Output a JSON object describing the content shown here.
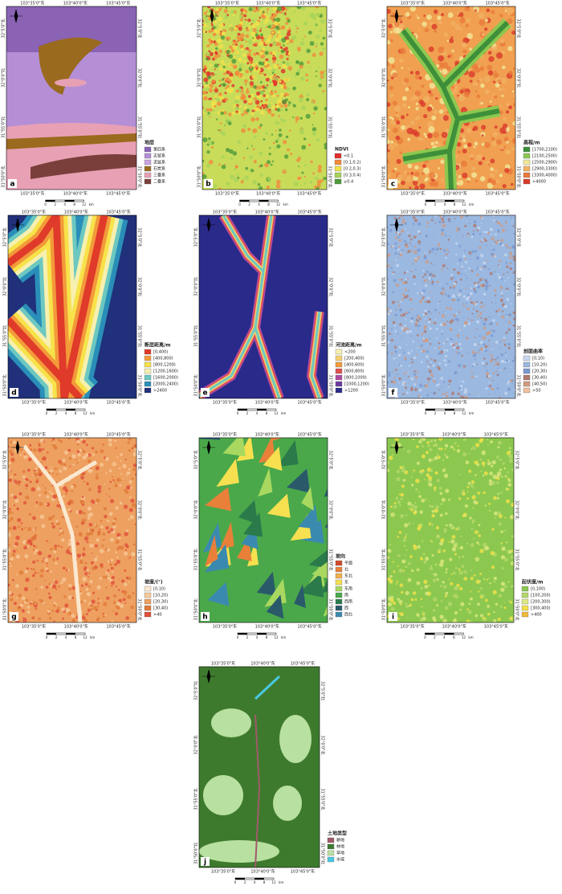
{
  "coords": {
    "lon": [
      "103°35'0\"东",
      "103°40'0\"东",
      "103°45'0\"东"
    ],
    "lat": [
      "32°5'0\"北",
      "32°0'0\"北",
      "31°55'0\"北",
      "31°50'0\"北"
    ],
    "scale": [
      "0",
      "2",
      "4",
      "8",
      "12"
    ],
    "unit": "km"
  },
  "panels": [
    {
      "label": "a",
      "legend_title": "地层",
      "items": [
        {
          "text": "第四系",
          "color": "#8a63b5"
        },
        {
          "text": "志留系",
          "color": "#b48fd6"
        },
        {
          "text": "泥盆系",
          "color": "#c9a3e0"
        },
        {
          "text": "石炭系",
          "color": "#9a6a1e"
        },
        {
          "text": "三叠系",
          "color": "#e8a0b4"
        },
        {
          "text": "二叠系",
          "color": "#7a3f3a"
        }
      ]
    },
    {
      "label": "b",
      "legend_title": "NDVI",
      "items": [
        {
          "text": "<0.1",
          "color": "#e0302a"
        },
        {
          "text": "[0.1,0.2)",
          "color": "#f28a3c"
        },
        {
          "text": "[0.2,0.3)",
          "color": "#f2e24a"
        },
        {
          "text": "[0.3,0.4)",
          "color": "#a6d35a"
        },
        {
          "text": "≥0.4",
          "color": "#4e9a3a"
        }
      ]
    },
    {
      "label": "c",
      "legend_title": "高程/m",
      "items": [
        {
          "text": "[1700,2100)",
          "color": "#3e8f3a"
        },
        {
          "text": "[2100,2500)",
          "color": "#8cc84f"
        },
        {
          "text": "[2500,2900)",
          "color": "#f2e89a"
        },
        {
          "text": "[2900,3300)",
          "color": "#f3b264"
        },
        {
          "text": "[3300,4000)",
          "color": "#ea7a3c"
        },
        {
          "text": ">4000",
          "color": "#d93a2a"
        }
      ]
    },
    {
      "label": "d",
      "legend_title": "断层距离/m",
      "items": [
        {
          "text": "[0,400)",
          "color": "#e03a2a"
        },
        {
          "text": "[400,800)",
          "color": "#f39a3a"
        },
        {
          "text": "[800,1200)",
          "color": "#f7e24a"
        },
        {
          "text": "[1200,1600)",
          "color": "#f7f0b0"
        },
        {
          "text": "[1600,2000)",
          "color": "#6cc8c0"
        },
        {
          "text": "[2000,2400)",
          "color": "#2a8fb8"
        },
        {
          "text": ">2400",
          "color": "#20307a"
        }
      ]
    },
    {
      "label": "e",
      "legend_title": "河流距离/m",
      "items": [
        {
          "text": "<200",
          "color": "#f7f0b0"
        },
        {
          "text": "[200,400)",
          "color": "#f7d070"
        },
        {
          "text": "[400,600)",
          "color": "#f39a3a"
        },
        {
          "text": "[600,800)",
          "color": "#e05050"
        },
        {
          "text": "[800,1000)",
          "color": "#b04aa0"
        },
        {
          "text": "[1000,1200)",
          "color": "#6a3aa0"
        },
        {
          "text": ">1200",
          "color": "#2a2a8a"
        }
      ]
    },
    {
      "label": "f",
      "legend_title": "剖面曲率",
      "items": [
        {
          "text": "[0,10)",
          "color": "#c8d8f0"
        },
        {
          "text": "[10,20)",
          "color": "#9ab8e0"
        },
        {
          "text": "[20,30)",
          "color": "#7a98d0"
        },
        {
          "text": "[30,40)",
          "color": "#b07a70"
        },
        {
          "text": "[40,50)",
          "color": "#d09a80"
        },
        {
          "text": ">50",
          "color": "#f0c0a0"
        }
      ]
    },
    {
      "label": "g",
      "legend_title": "坡度/(°)",
      "items": [
        {
          "text": "[0,10)",
          "color": "#fbe8d0"
        },
        {
          "text": "[10,20)",
          "color": "#f6c998"
        },
        {
          "text": "[20,30)",
          "color": "#eea060"
        },
        {
          "text": "[30,40)",
          "color": "#e07a3a"
        },
        {
          "text": ">40",
          "color": "#e0503a"
        }
      ]
    },
    {
      "label": "h",
      "legend_title": "坡向",
      "items": [
        {
          "text": "平面",
          "color": "#d04a2a"
        },
        {
          "text": "北",
          "color": "#e8803a"
        },
        {
          "text": "东北",
          "color": "#f0b050"
        },
        {
          "text": "东",
          "color": "#f7e050"
        },
        {
          "text": "东南",
          "color": "#a8d860"
        },
        {
          "text": "南",
          "color": "#4aa84a"
        },
        {
          "text": "西南",
          "color": "#2a7a4a"
        },
        {
          "text": "西",
          "color": "#2a5a6a"
        },
        {
          "text": "西北",
          "color": "#3a8ab0"
        }
      ]
    },
    {
      "label": "i",
      "legend_title": "起伏度/m",
      "items": [
        {
          "text": "[0,100)",
          "color": "#8cc84f"
        },
        {
          "text": "[100,200)",
          "color": "#b4d86a"
        },
        {
          "text": "[200,300)",
          "color": "#dce880"
        },
        {
          "text": "[300,400)",
          "color": "#f2e24a"
        },
        {
          "text": ">400",
          "color": "#f2b83a"
        }
      ]
    },
    {
      "label": "j",
      "legend_title": "土地类型",
      "items": [
        {
          "text": "耕地",
          "color": "#a05a6a"
        },
        {
          "text": "林地",
          "color": "#3e7a2e"
        },
        {
          "text": "草地",
          "color": "#b8e0a0"
        },
        {
          "text": "水域",
          "color": "#4ac8e0"
        }
      ]
    }
  ]
}
